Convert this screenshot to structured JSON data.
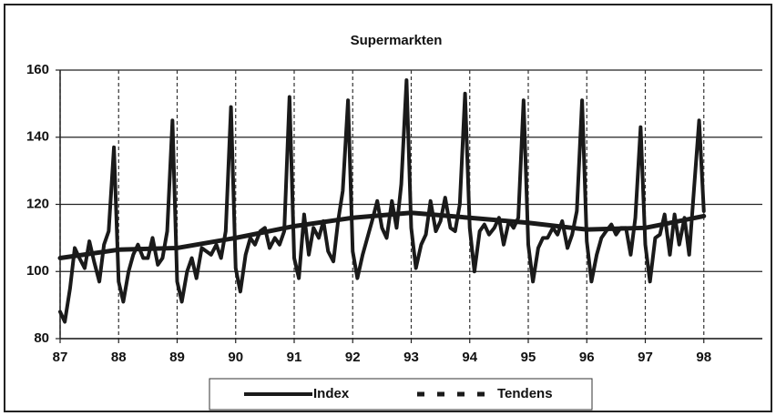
{
  "chart_data": {
    "type": "line",
    "title": "Supermarkten",
    "xlim": [
      87,
      99
    ],
    "xticks": [
      87,
      88,
      89,
      90,
      91,
      92,
      93,
      94,
      95,
      96,
      97,
      98
    ],
    "ylim": [
      80,
      160
    ],
    "yticks": [
      80,
      100,
      120,
      140,
      160
    ],
    "grid": true,
    "legend": "bottom",
    "series": [
      {
        "name": "Index",
        "color": "#1a1a1a",
        "style": "solid",
        "x": [
          87,
          87.08,
          87.17,
          87.25,
          87.33,
          87.42,
          87.5,
          87.58,
          87.67,
          87.75,
          87.83,
          87.92,
          88,
          88.08,
          88.17,
          88.25,
          88.33,
          88.42,
          88.5,
          88.58,
          88.67,
          88.75,
          88.83,
          88.92,
          89,
          89.08,
          89.17,
          89.25,
          89.33,
          89.42,
          89.5,
          89.58,
          89.67,
          89.75,
          89.83,
          89.92,
          90,
          90.08,
          90.17,
          90.25,
          90.33,
          90.42,
          90.5,
          90.58,
          90.67,
          90.75,
          90.83,
          90.92,
          91,
          91.08,
          91.17,
          91.25,
          91.33,
          91.42,
          91.5,
          91.58,
          91.67,
          91.75,
          91.83,
          91.92,
          92,
          92.08,
          92.17,
          92.25,
          92.33,
          92.42,
          92.5,
          92.58,
          92.67,
          92.75,
          92.83,
          92.92,
          93,
          93.08,
          93.17,
          93.25,
          93.33,
          93.42,
          93.5,
          93.58,
          93.67,
          93.75,
          93.83,
          93.92,
          94,
          94.08,
          94.17,
          94.25,
          94.33,
          94.42,
          94.5,
          94.58,
          94.67,
          94.75,
          94.83,
          94.92,
          95,
          95.08,
          95.17,
          95.25,
          95.33,
          95.42,
          95.5,
          95.58,
          95.67,
          95.75,
          95.83,
          95.92,
          96,
          96.08,
          96.17,
          96.25,
          96.33,
          96.42,
          96.5,
          96.58,
          96.67,
          96.75,
          96.83,
          96.92,
          97,
          97.08,
          97.17,
          97.25,
          97.33,
          97.42,
          97.5,
          97.58,
          97.67,
          97.75,
          97.83,
          97.92,
          98
        ],
        "values": [
          88,
          85,
          95,
          107,
          104,
          101,
          109,
          103,
          97,
          108,
          112,
          137,
          97,
          91,
          100,
          105,
          108,
          104,
          104,
          110,
          102,
          104,
          112,
          145,
          97,
          91,
          100,
          104,
          98,
          107,
          106,
          105,
          108,
          104,
          112,
          149,
          101,
          94,
          105,
          110,
          108,
          112,
          113,
          107,
          110,
          108,
          112,
          152,
          104,
          98,
          117,
          105,
          113,
          110,
          115,
          106,
          103,
          115,
          124,
          151,
          106,
          98,
          105,
          110,
          115,
          121,
          113,
          110,
          121,
          113,
          126,
          157,
          113,
          101,
          108,
          111,
          121,
          112,
          115,
          122,
          113,
          112,
          120,
          153,
          113,
          100,
          112,
          114,
          111,
          113,
          116,
          108,
          115,
          113,
          116,
          151,
          108,
          97,
          107,
          110,
          110,
          113,
          111,
          115,
          107,
          111,
          118,
          151,
          109,
          97,
          105,
          110,
          112,
          114,
          111,
          113,
          113,
          105,
          116,
          143,
          108,
          97,
          110,
          111,
          117,
          105,
          117,
          108,
          116,
          105,
          124,
          145,
          118
        ]
      },
      {
        "name": "Tendens",
        "color": "#1a1a1a",
        "style": "dashed",
        "x": [
          87,
          88,
          89,
          90,
          91,
          92,
          93,
          94,
          95,
          96,
          97,
          98
        ],
        "values": [
          104,
          106.5,
          107,
          110,
          113.5,
          116,
          117.5,
          116,
          114.5,
          112.5,
          113,
          116.5
        ]
      }
    ]
  }
}
